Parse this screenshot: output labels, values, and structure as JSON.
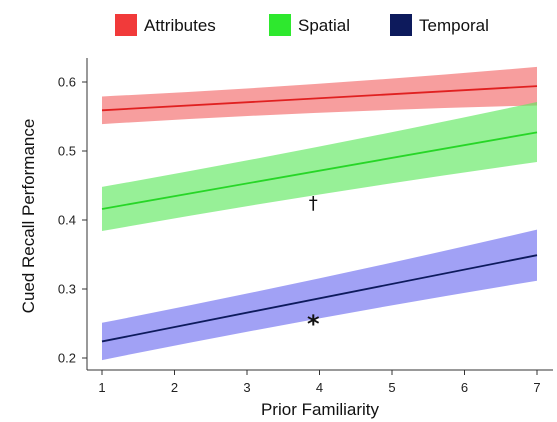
{
  "chart_data": {
    "type": "line",
    "title": "",
    "xlabel": "Prior Familiarity",
    "ylabel": "Cued Recall Performance",
    "x": [
      1,
      7
    ],
    "xticks": [
      "1",
      "2",
      "3",
      "4",
      "5",
      "6",
      "7"
    ],
    "yticks": [
      "0.2",
      "0.3",
      "0.4",
      "0.5",
      "0.6"
    ],
    "xlim": [
      0.8,
      7.2
    ],
    "ylim": [
      0.185,
      0.63
    ],
    "grid": false,
    "legend": "top",
    "series": [
      {
        "name": "Attributes",
        "line_color": "#e02020",
        "band_color": "#f26a6a",
        "fit": [
          0.559,
          0.594
        ],
        "lower": [
          0.539,
          0.566
        ],
        "upper": [
          0.579,
          0.622
        ]
      },
      {
        "name": "Spatial",
        "line_color": "#27d627",
        "band_color": "#5fe85f",
        "fit": [
          0.416,
          0.527
        ],
        "lower": [
          0.384,
          0.484
        ],
        "upper": [
          0.448,
          0.571
        ]
      },
      {
        "name": "Temporal",
        "line_color": "#0d1a5c",
        "band_color": "#6e6ef0",
        "fit": [
          0.224,
          0.349
        ],
        "lower": [
          0.197,
          0.312
        ],
        "upper": [
          0.251,
          0.386
        ]
      }
    ],
    "annotations": [
      {
        "text": "†",
        "x": 3.9,
        "y": 0.425,
        "series": "Spatial"
      },
      {
        "text": "*",
        "x": 3.9,
        "y": 0.255,
        "series": "Temporal"
      }
    ]
  }
}
